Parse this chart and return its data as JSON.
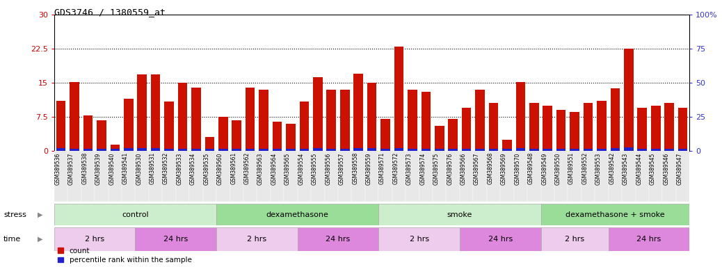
{
  "title": "GDS3746 / 1380559_at",
  "left_ylim": [
    0,
    30
  ],
  "right_ylim": [
    0,
    100
  ],
  "left_yticks": [
    0,
    7.5,
    15,
    22.5,
    30
  ],
  "right_yticks": [
    0,
    25,
    50,
    75,
    100
  ],
  "left_ytick_color": "#cc0000",
  "right_ytick_color": "#3333cc",
  "bar_color_red": "#cc1100",
  "bar_color_blue": "#2222cc",
  "categories": [
    "GSM389536",
    "GSM389537",
    "GSM389538",
    "GSM389539",
    "GSM389540",
    "GSM389541",
    "GSM389530",
    "GSM389531",
    "GSM389532",
    "GSM389533",
    "GSM389534",
    "GSM389535",
    "GSM389560",
    "GSM389561",
    "GSM389562",
    "GSM389563",
    "GSM389564",
    "GSM389565",
    "GSM389554",
    "GSM389555",
    "GSM389556",
    "GSM389557",
    "GSM389558",
    "GSM389559",
    "GSM389571",
    "GSM389572",
    "GSM389573",
    "GSM389574",
    "GSM389575",
    "GSM389576",
    "GSM389566",
    "GSM389567",
    "GSM389568",
    "GSM389569",
    "GSM389570",
    "GSM389548",
    "GSM389549",
    "GSM389550",
    "GSM389551",
    "GSM389552",
    "GSM389553",
    "GSM389542",
    "GSM389543",
    "GSM389544",
    "GSM389545",
    "GSM389546",
    "GSM389547"
  ],
  "red_values": [
    11.0,
    15.2,
    7.8,
    6.8,
    1.4,
    11.5,
    16.8,
    16.8,
    10.8,
    15.0,
    14.0,
    3.0,
    7.5,
    6.8,
    14.0,
    13.5,
    6.5,
    6.0,
    10.8,
    16.2,
    13.5,
    13.5,
    17.0,
    15.0,
    7.0,
    23.0,
    13.5,
    13.0,
    5.5,
    7.0,
    9.5,
    13.5,
    10.5,
    2.5,
    15.2,
    10.5,
    10.0,
    9.0,
    8.5,
    10.5,
    11.0,
    13.8,
    22.5,
    9.5,
    10.0,
    10.5,
    9.5
  ],
  "blue_values": [
    0.6,
    0.5,
    0.5,
    0.4,
    0.5,
    0.6,
    0.6,
    0.6,
    0.5,
    0.5,
    0.5,
    0.4,
    0.5,
    0.5,
    0.5,
    0.5,
    0.5,
    0.5,
    0.5,
    0.6,
    0.5,
    0.5,
    0.6,
    0.6,
    0.5,
    0.6,
    0.5,
    0.5,
    0.4,
    0.5,
    0.5,
    0.5,
    0.5,
    0.4,
    0.6,
    0.5,
    0.5,
    0.5,
    0.5,
    0.5,
    0.5,
    0.6,
    0.7,
    0.5,
    0.5,
    0.5,
    0.5
  ],
  "stress_groups": [
    {
      "label": "control",
      "start": 0,
      "end": 12,
      "color": "#cceecc"
    },
    {
      "label": "dexamethasone",
      "start": 12,
      "end": 24,
      "color": "#99dd99"
    },
    {
      "label": "smoke",
      "start": 24,
      "end": 36,
      "color": "#cceecc"
    },
    {
      "label": "dexamethasone + smoke",
      "start": 36,
      "end": 47,
      "color": "#99dd99"
    }
  ],
  "time_groups": [
    {
      "label": "2 hrs",
      "start": 0,
      "end": 6,
      "color": "#eeccee"
    },
    {
      "label": "24 hrs",
      "start": 6,
      "end": 12,
      "color": "#dd88dd"
    },
    {
      "label": "2 hrs",
      "start": 12,
      "end": 18,
      "color": "#eeccee"
    },
    {
      "label": "24 hrs",
      "start": 18,
      "end": 24,
      "color": "#dd88dd"
    },
    {
      "label": "2 hrs",
      "start": 24,
      "end": 30,
      "color": "#eeccee"
    },
    {
      "label": "24 hrs",
      "start": 30,
      "end": 36,
      "color": "#dd88dd"
    },
    {
      "label": "2 hrs",
      "start": 36,
      "end": 41,
      "color": "#eeccee"
    },
    {
      "label": "24 hrs",
      "start": 41,
      "end": 47,
      "color": "#dd88dd"
    }
  ],
  "xtick_bg_color": "#e8e8e8",
  "bg_color": "#ffffff",
  "dotted_lines": [
    7.5,
    15.0,
    22.5
  ]
}
